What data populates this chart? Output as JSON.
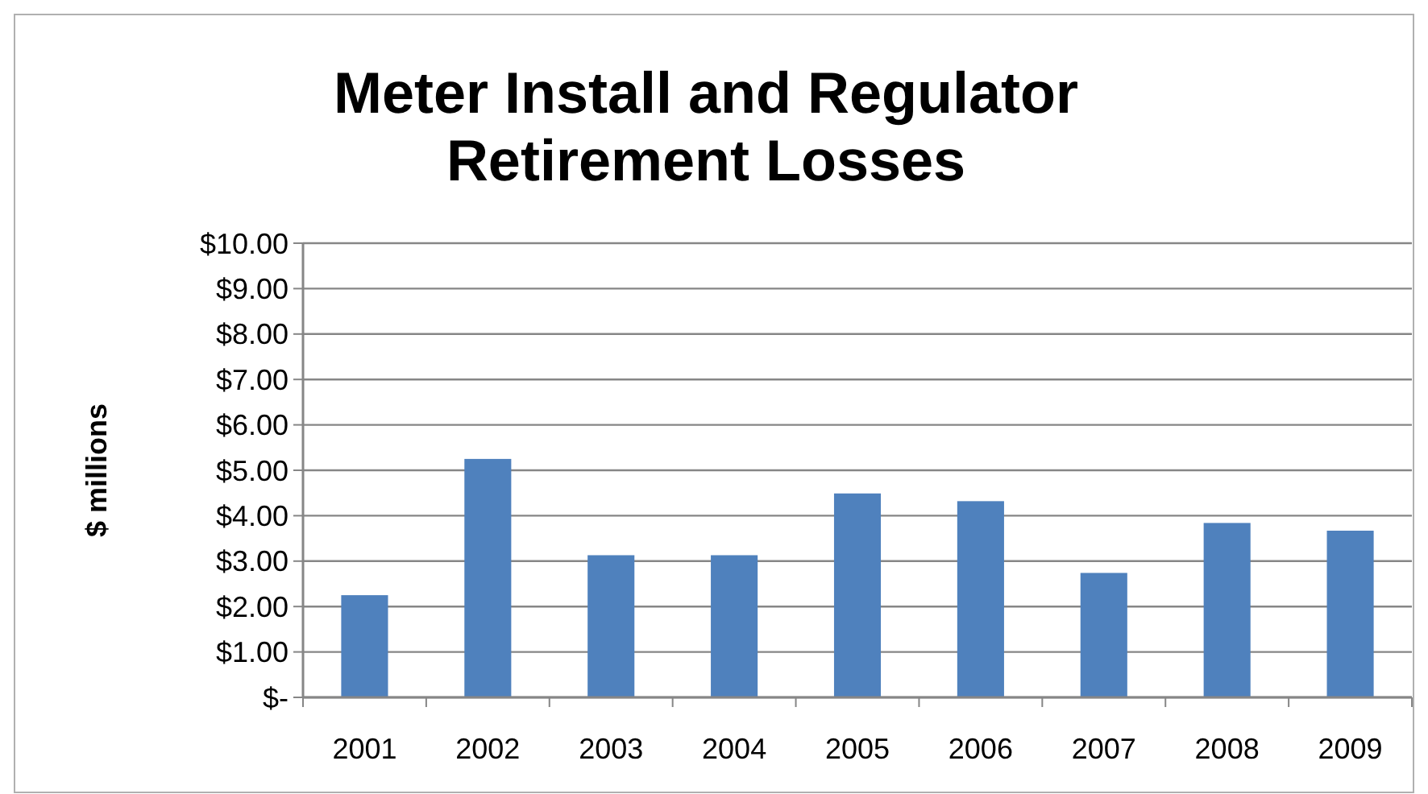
{
  "chart_data": {
    "type": "bar",
    "title": "Meter Install and Regulator Retirement Losses",
    "ylabel": "$ millions",
    "categories": [
      "2001",
      "2002",
      "2003",
      "2004",
      "2005",
      "2006",
      "2007",
      "2008",
      "2009"
    ],
    "values": [
      2.25,
      5.25,
      3.13,
      3.13,
      4.49,
      4.32,
      2.74,
      3.84,
      3.67
    ],
    "color": "#4f81bd",
    "ylim": [
      0,
      10
    ],
    "yticks": [
      {
        "value": 0,
        "label": "$-"
      },
      {
        "value": 1,
        "label": "$1.00"
      },
      {
        "value": 2,
        "label": "$2.00"
      },
      {
        "value": 3,
        "label": "$3.00"
      },
      {
        "value": 4,
        "label": "$4.00"
      },
      {
        "value": 5,
        "label": "$5.00"
      },
      {
        "value": 6,
        "label": "$6.00"
      },
      {
        "value": 7,
        "label": "$7.00"
      },
      {
        "value": 8,
        "label": "$8.00"
      },
      {
        "value": 9,
        "label": "$9.00"
      },
      {
        "value": 10,
        "label": "$10.00"
      }
    ],
    "grid": "y"
  }
}
